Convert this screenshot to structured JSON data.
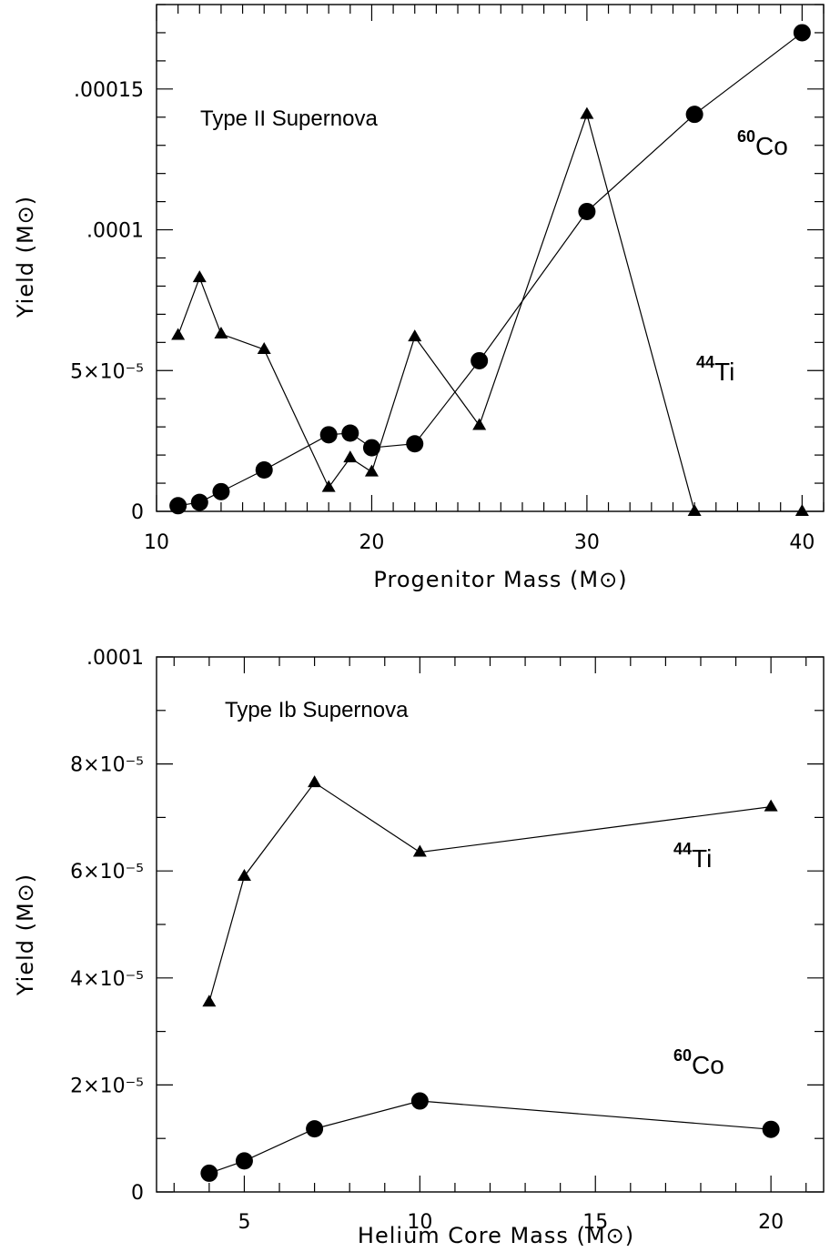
{
  "chart_data": [
    {
      "type": "line",
      "title": "Type II Supernova",
      "xlabel": "Progenitor Mass (M⊙)",
      "ylabel": "Yield (M⊙)",
      "xlim": [
        10,
        41
      ],
      "ylim": [
        0,
        0.00018
      ],
      "xticks": [
        10,
        20,
        30,
        40
      ],
      "xtick_labels": [
        "10",
        "20",
        "30",
        "40"
      ],
      "yticks": [
        0,
        5e-05,
        0.0001,
        0.00015
      ],
      "ytick_labels": [
        "0",
        "5×10⁻⁵",
        ".0001",
        ".00015"
      ],
      "grid": false,
      "series": [
        {
          "name": "44Ti",
          "label_sup": "44",
          "label_base": "Ti",
          "marker": "triangle",
          "x": [
            11,
            12,
            13,
            15,
            18,
            19,
            20,
            22,
            25,
            30,
            35,
            40
          ],
          "y": [
            6.25e-05,
            8.3e-05,
            6.3e-05,
            5.75e-05,
            8.5e-06,
            1.9e-05,
            1.4e-05,
            6.2e-05,
            3.05e-05,
            0.000141,
            0,
            0
          ]
        },
        {
          "name": "60Co",
          "label_sup": "60",
          "label_base": "Co",
          "marker": "circle",
          "x": [
            11,
            12,
            13,
            15,
            18,
            19,
            20,
            22,
            25,
            30,
            35,
            40
          ],
          "y": [
            2e-06,
            3.2e-06,
            7e-06,
            1.47e-05,
            2.72e-05,
            2.78e-05,
            2.26e-05,
            2.4e-05,
            5.35e-05,
            0.0001065,
            0.000141,
            0.00017
          ]
        }
      ]
    },
    {
      "type": "line",
      "title": "Type Ib Supernova",
      "xlabel": "Helium Core Mass (M⊙)",
      "ylabel": "Yield (M⊙)",
      "xlim": [
        2.5,
        21.5
      ],
      "ylim": [
        0,
        0.0001
      ],
      "xticks": [
        5,
        10,
        15,
        20
      ],
      "xtick_labels": [
        "5",
        "10",
        "15",
        "20"
      ],
      "yticks": [
        0,
        2e-05,
        4e-05,
        6e-05,
        8e-05,
        0.0001
      ],
      "ytick_labels": [
        "0",
        "2×10⁻⁵",
        "4×10⁻⁵",
        "6×10⁻⁵",
        "8×10⁻⁵",
        ".0001"
      ],
      "grid": false,
      "series": [
        {
          "name": "44Ti",
          "label_sup": "44",
          "label_base": "Ti",
          "marker": "triangle",
          "x": [
            4,
            5,
            7,
            10,
            20
          ],
          "y": [
            3.55e-05,
            5.9e-05,
            7.65e-05,
            6.35e-05,
            7.2e-05
          ]
        },
        {
          "name": "60Co",
          "label_sup": "60",
          "label_base": "Co",
          "marker": "circle",
          "x": [
            4,
            5,
            7,
            10,
            20
          ],
          "y": [
            3.5e-06,
            5.8e-06,
            1.18e-05,
            1.7e-05,
            1.17e-05
          ]
        }
      ]
    }
  ]
}
